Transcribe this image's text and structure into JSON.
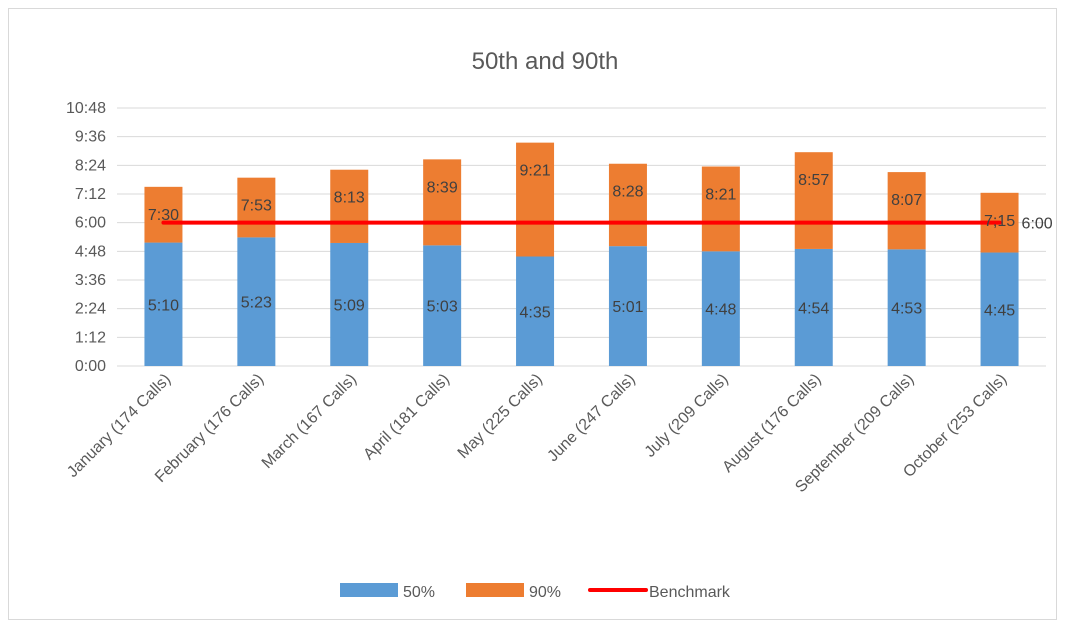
{
  "chart_data": {
    "type": "bar",
    "stacked": true,
    "title": "50th and 90th",
    "xlabel": "",
    "ylabel": "",
    "categories": [
      "January (174 Calls)",
      "February (176 Calls)",
      "March (167 Calls)",
      "April (181 Calls)",
      "May (225 Calls)",
      "June (247 Calls)",
      "July (209 Calls)",
      "August (176 Calls)",
      "September (209 Calls)",
      "October (253 Calls)"
    ],
    "y_ticks": [
      "0:00",
      "1:12",
      "2:24",
      "3:36",
      "4:48",
      "6:00",
      "7:12",
      "8:24",
      "9:36",
      "10:48"
    ],
    "ylim_minutes": [
      0,
      648
    ],
    "series": [
      {
        "name": "50%",
        "type": "bar",
        "color": "#5b9bd5",
        "values_minutes": [
          310,
          323,
          309,
          303,
          275,
          301,
          288,
          294,
          293,
          285
        ],
        "labels": [
          "5:10",
          "5:23",
          "5:09",
          "5:03",
          "4:35",
          "5:01",
          "4:48",
          "4:54",
          "4:53",
          "4:45"
        ]
      },
      {
        "name": "90%",
        "type": "bar",
        "color": "#ed7d31",
        "total_minutes": [
          450,
          473,
          493,
          519,
          561,
          508,
          501,
          537,
          487,
          435
        ],
        "labels": [
          "7:30",
          "7:53",
          "8:13",
          "8:39",
          "9:21",
          "8:28",
          "8:21",
          "8:57",
          "8:07",
          "7;15"
        ]
      },
      {
        "name": "Benchmark",
        "type": "line",
        "color": "#ff0000",
        "value_minutes": 360,
        "end_label": "6:00"
      }
    ],
    "grid": true,
    "legend_position": "bottom"
  }
}
